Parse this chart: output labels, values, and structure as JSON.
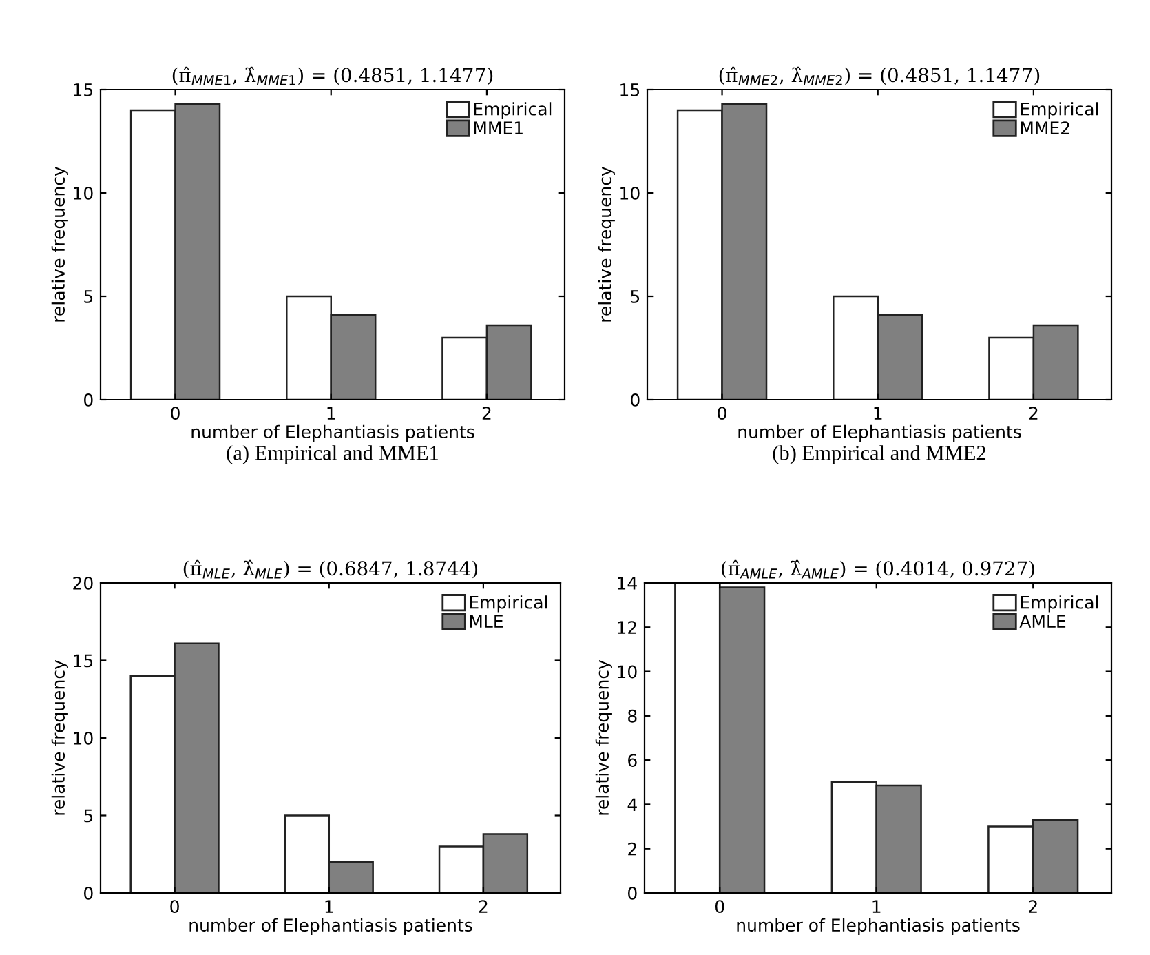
{
  "chart_data": [
    {
      "type": "bar",
      "title": "(π̂$_{MME1}$, λ̂$_{MME1}$) = (0.4851, 1.1477)",
      "xlabel": "number of Elephantiasis patients",
      "ylabel": "relative frequency",
      "categories": [
        "0",
        "1",
        "2"
      ],
      "series": [
        {
          "name": "Empirical",
          "color": "#ffffff",
          "values": [
            14,
            5,
            3
          ]
        },
        {
          "name": "MME1",
          "color": "#808080",
          "values": [
            14.3,
            4.1,
            3.6
          ]
        }
      ],
      "ylim": [
        0,
        15
      ],
      "yticks": [
        0,
        5,
        10,
        15
      ],
      "legend": "top right",
      "grid": false,
      "annotations": [
        "(a) Empirical and MME1"
      ]
    },
    {
      "type": "bar",
      "title": "(π̂$_{MME2}$, λ̂$_{MME2}$) = (0.4851, 1.1477)",
      "xlabel": "number of Elephantiasis patients",
      "ylabel": "relative frequency",
      "categories": [
        "0",
        "1",
        "2"
      ],
      "series": [
        {
          "name": "Empirical",
          "color": "#ffffff",
          "values": [
            14,
            5,
            3
          ]
        },
        {
          "name": "MME2",
          "color": "#808080",
          "values": [
            14.3,
            4.1,
            3.6
          ]
        }
      ],
      "ylim": [
        0,
        15
      ],
      "yticks": [
        0,
        5,
        10,
        15
      ],
      "legend": "top right",
      "grid": false,
      "annotations": [
        "(b) Empirical and MME2"
      ]
    },
    {
      "type": "bar",
      "title": "(π̂$_{MLE}$, λ̂$_{MLE}$) = (0.6847, 1.8744)",
      "xlabel": "number of Elephantiasis patients",
      "ylabel": "relative frequency",
      "categories": [
        "0",
        "1",
        "2"
      ],
      "series": [
        {
          "name": "Empirical",
          "color": "#ffffff",
          "values": [
            14,
            5,
            3
          ]
        },
        {
          "name": "MLE",
          "color": "#808080",
          "values": [
            16.1,
            2,
            3.8
          ]
        }
      ],
      "ylim": [
        0,
        20
      ],
      "yticks": [
        0,
        5,
        10,
        15,
        20
      ],
      "legend": "top right",
      "grid": false
    },
    {
      "type": "bar",
      "title": "(π̂$_{AMLE}$, λ̂$_{AMLE}$) = (0.4014, 0.9727)",
      "xlabel": "number of Elephantiasis patients",
      "ylabel": "relative frequency",
      "categories": [
        "0",
        "1",
        "2"
      ],
      "series": [
        {
          "name": "Empirical",
          "color": "#ffffff",
          "values": [
            14,
            5,
            3
          ]
        },
        {
          "name": "AMLE",
          "color": "#808080",
          "values": [
            13.8,
            4.85,
            3.3
          ]
        }
      ],
      "ylim": [
        0,
        14
      ],
      "yticks": [
        0,
        2,
        4,
        6,
        8,
        10,
        12,
        14
      ],
      "legend": "top right",
      "grid": false
    }
  ]
}
